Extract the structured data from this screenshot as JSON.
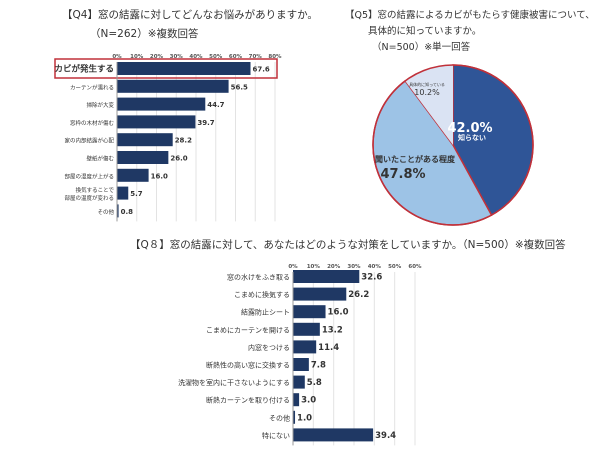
{
  "chart_data": [
    {
      "type": "bar",
      "title": "【Q4】窓の結露に対してどんなお悩みがありますか。",
      "subtitle": "（N=262）※複数回答",
      "categories": [
        "カビが発生する",
        "カーテンが濡れる",
        "掃除が大変",
        "窓枠の木材が傷む",
        "家の内部結露が心配",
        "壁紙が傷む",
        "部屋の湿度が上がる",
        "換気することで\n部屋の温度が変わる",
        "その他"
      ],
      "values": [
        67.6,
        56.5,
        44.7,
        39.7,
        28.2,
        26.0,
        16.0,
        5.7,
        0.8
      ],
      "xlim": [
        0,
        80
      ],
      "ticks": [
        "0%",
        "10%",
        "20%",
        "30%",
        "40%",
        "50%",
        "60%",
        "70%",
        "80%"
      ],
      "highlight": "カビが発生する",
      "bar_color": "#1f3864",
      "highlight_color": "#c0313a",
      "grid": true
    },
    {
      "type": "pie",
      "title": "【Q5】窓の結露によるカビがもたらす健康被害について、",
      "title2": "具体的に知っていますか。",
      "subtitle": "（N=500）※単一回答",
      "slices": [
        {
          "label": "知らない",
          "value": 42.0,
          "display": "42.0%",
          "color": "#2f5597"
        },
        {
          "label": "聞いたことがある程度",
          "value": 47.8,
          "display": "47.8%",
          "color": "#9dc3e6"
        },
        {
          "label": "具体的に知っている",
          "value": 10.2,
          "display": "10.2%",
          "color": "#dae3f3"
        }
      ],
      "outline_color": "#c0313a"
    },
    {
      "type": "bar",
      "title": "【Q８】窓の結露に対して、あなたはどのような対策をしていますか。（N=500）※複数回答",
      "categories": [
        "窓の水けをふき取る",
        "こまめに換気する",
        "結露防止シート",
        "こまめにカーテンを開ける",
        "内窓をつける",
        "断熱性の高い窓に交換する",
        "洗濯物を室内に干さないようにする",
        "断熱カーテンを取り付ける",
        "その他",
        "特にない"
      ],
      "values": [
        32.6,
        26.2,
        16.0,
        13.2,
        11.4,
        7.8,
        5.8,
        3.0,
        1.0,
        39.4
      ],
      "xlim": [
        0,
        60
      ],
      "ticks": [
        "0%",
        "10%",
        "20%",
        "30%",
        "40%",
        "50%",
        "60%"
      ],
      "bar_color": "#1f3864",
      "grid": true
    }
  ]
}
